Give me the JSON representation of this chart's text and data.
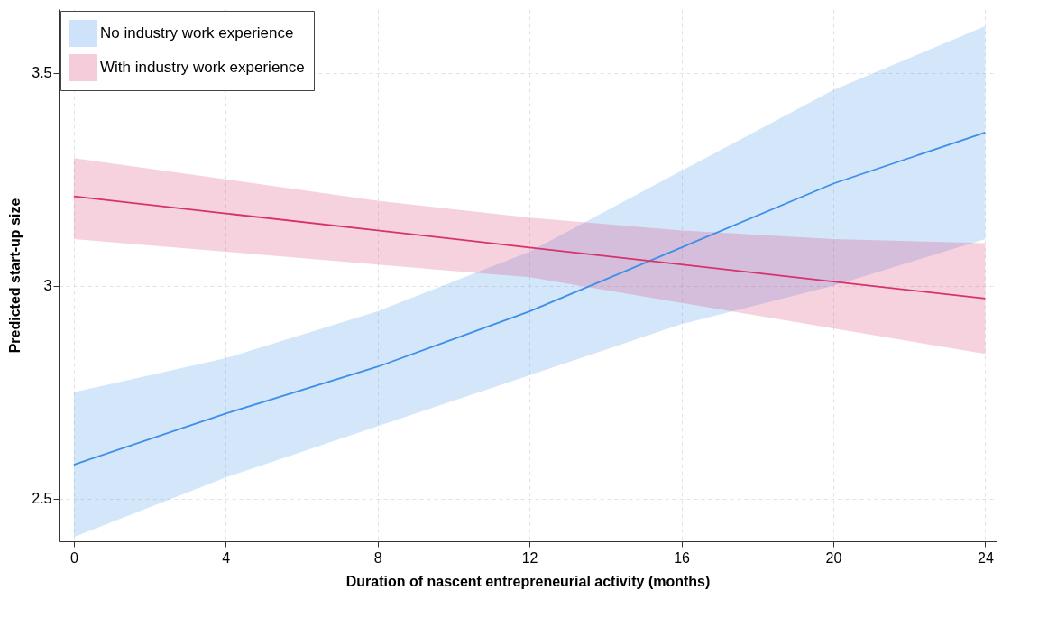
{
  "chart_data": {
    "type": "line",
    "xlabel": "Duration of nascent entrepreneurial activity (months)",
    "ylabel": "Predicted start-up size",
    "x": [
      0,
      4,
      8,
      12,
      16,
      20,
      24
    ],
    "series": [
      {
        "name": "No industry work experience",
        "color": "#3d8fe8",
        "values": [
          2.58,
          2.7,
          2.81,
          2.94,
          3.09,
          3.24,
          3.36
        ],
        "lower": [
          2.41,
          2.55,
          2.67,
          2.79,
          2.91,
          3.0,
          3.11
        ],
        "upper": [
          2.75,
          2.83,
          2.94,
          3.08,
          3.27,
          3.46,
          3.61
        ]
      },
      {
        "name": "With industry work experience",
        "color": "#d6336c",
        "values": [
          3.21,
          3.17,
          3.13,
          3.09,
          3.05,
          3.01,
          2.97
        ],
        "lower": [
          3.11,
          3.08,
          3.05,
          3.02,
          2.96,
          2.9,
          2.84
        ],
        "upper": [
          3.3,
          3.25,
          3.2,
          3.16,
          3.13,
          3.11,
          3.1
        ]
      }
    ],
    "xlim": [
      -0.4,
      24.3
    ],
    "ylim": [
      2.4,
      3.65
    ],
    "xticks": [
      0,
      4,
      8,
      12,
      16,
      20,
      24
    ],
    "yticks": [
      2.5,
      3,
      3.5
    ],
    "grid": true,
    "legend": "top left",
    "line_style": "solid"
  }
}
